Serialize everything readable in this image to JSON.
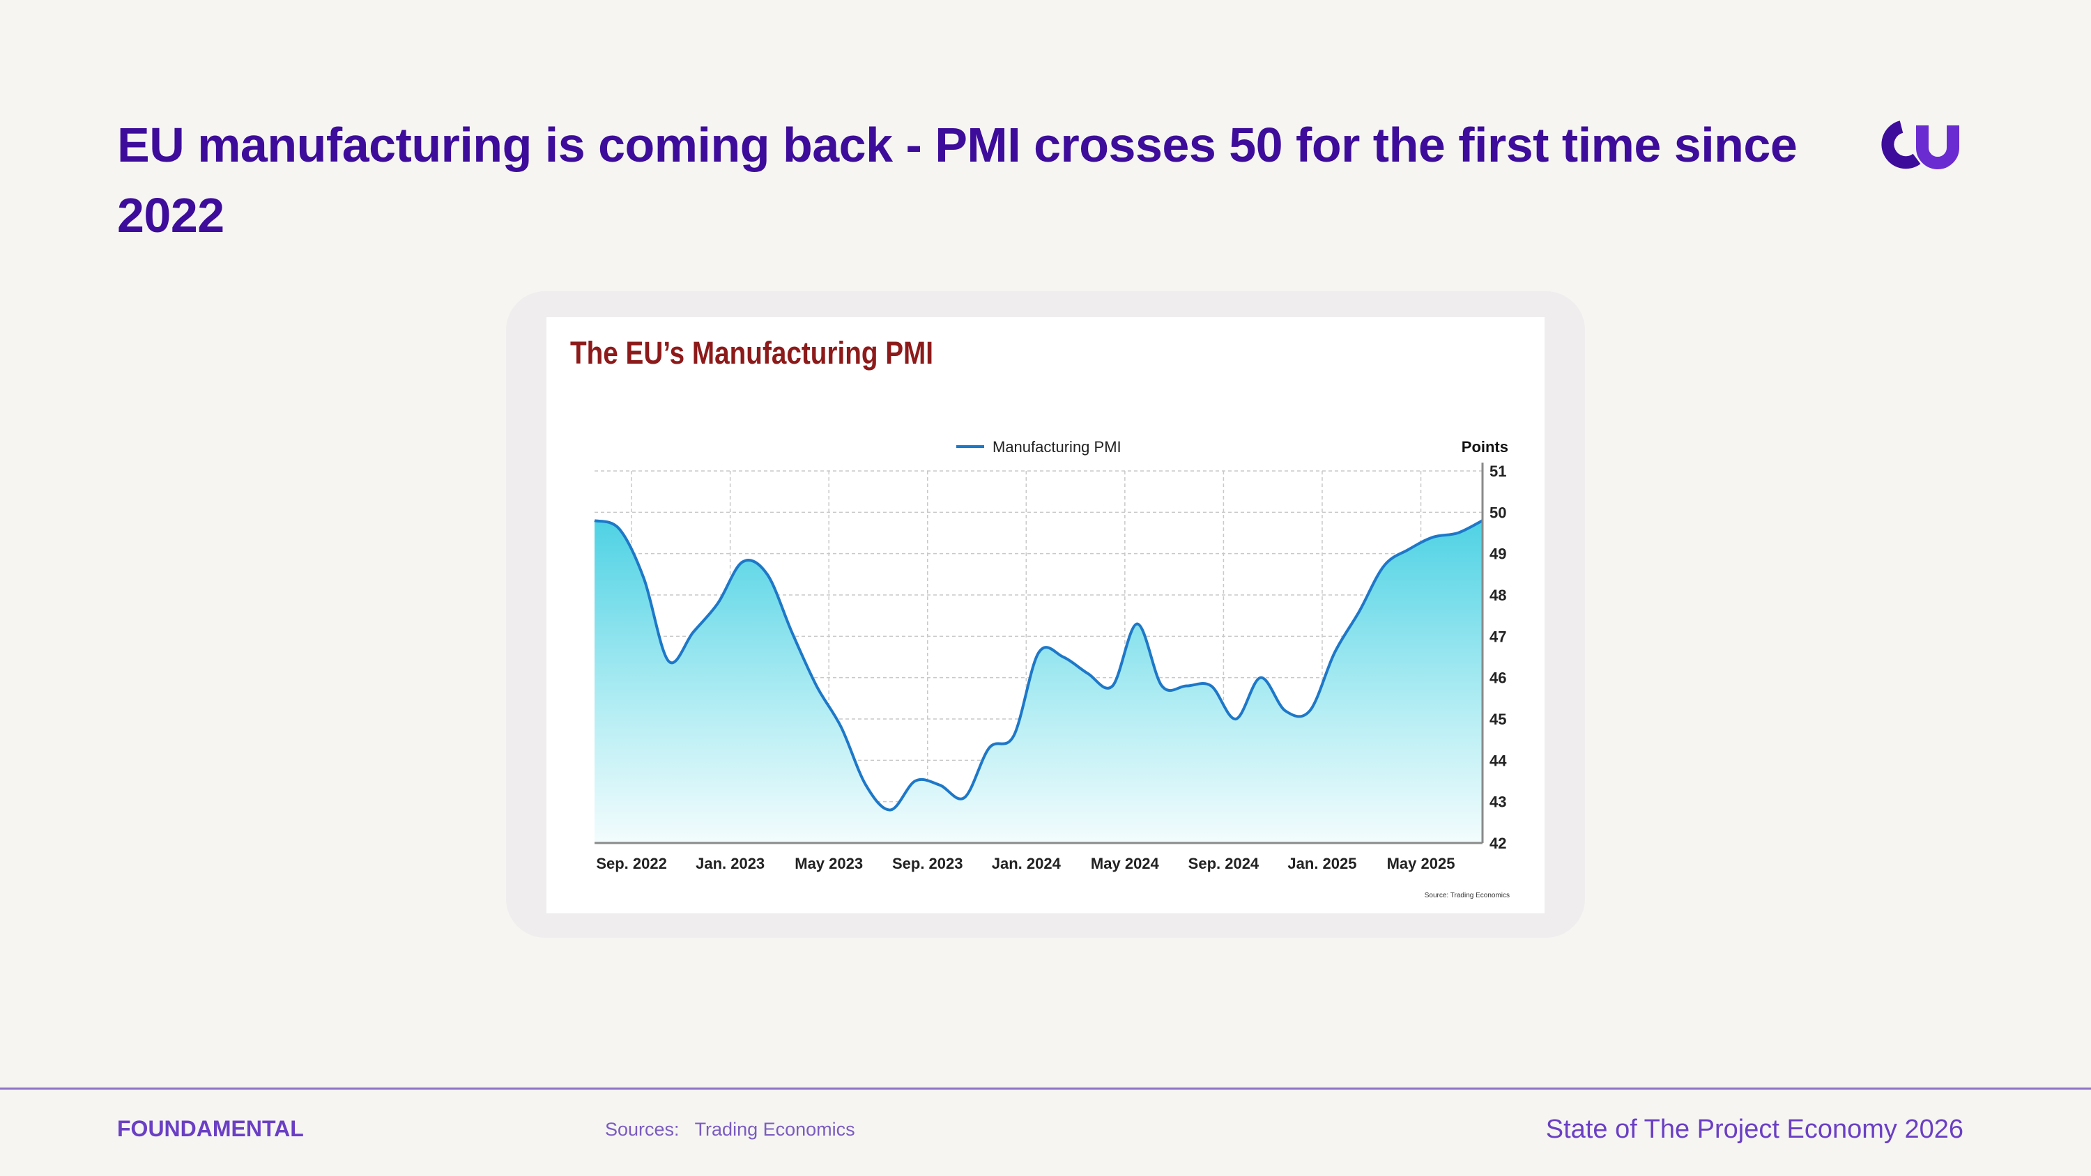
{
  "slide": {
    "title": "EU manufacturing is coming back - PMI crosses 50 for the first time since 2022",
    "logo_icon": "cu-logo-icon",
    "accent_color": "#3d0c9a"
  },
  "footer": {
    "brand": "FOUNDAMENTAL",
    "sources_label": "Sources:",
    "sources_value": "Trading Economics",
    "report_name": "State of The Project Economy 2026"
  },
  "chart_data": {
    "type": "area",
    "title": "The EU’s Manufacturing PMI",
    "ylabel": "Points",
    "source_note": "Source: Trading Economics",
    "legend_position": "top-center",
    "y_axis_side": "right",
    "grid": true,
    "line_color": "#1e78c8",
    "fill_top_color": "#4fd2e4",
    "ylim": [
      42,
      51
    ],
    "yticks": [
      42,
      43,
      44,
      45,
      46,
      47,
      48,
      49,
      50,
      51
    ],
    "x_tick_labels": [
      "Sep. 2022",
      "Jan. 2023",
      "May 2023",
      "Sep. 2023",
      "Jan. 2024",
      "May 2024",
      "Sep. 2024",
      "Jan. 2025",
      "May 2025"
    ],
    "x_tick_index": [
      1.5,
      5.5,
      9.5,
      13.5,
      17.5,
      21.5,
      25.5,
      29.5,
      33.5
    ],
    "x_range": [
      0,
      36
    ],
    "series": [
      {
        "name": "Manufacturing PMI",
        "x": [
          0,
          1,
          2,
          3,
          4,
          5,
          6,
          7,
          8,
          9,
          10,
          11,
          12,
          13,
          14,
          15,
          16,
          17,
          18,
          19,
          20,
          21,
          22,
          23,
          24,
          25,
          26,
          27,
          28,
          29,
          30,
          31,
          32,
          33,
          34,
          35,
          36
        ],
        "values": [
          49.8,
          49.6,
          48.4,
          46.4,
          47.1,
          47.8,
          48.8,
          48.5,
          47.1,
          45.8,
          44.8,
          43.4,
          42.8,
          43.5,
          43.4,
          43.1,
          44.3,
          44.6,
          46.6,
          46.5,
          46.1,
          45.8,
          47.3,
          45.8,
          45.8,
          45.8,
          45.0,
          46.0,
          45.2,
          45.2,
          46.6,
          47.6,
          48.7,
          49.1,
          49.4,
          49.5,
          49.8
        ]
      }
    ]
  }
}
